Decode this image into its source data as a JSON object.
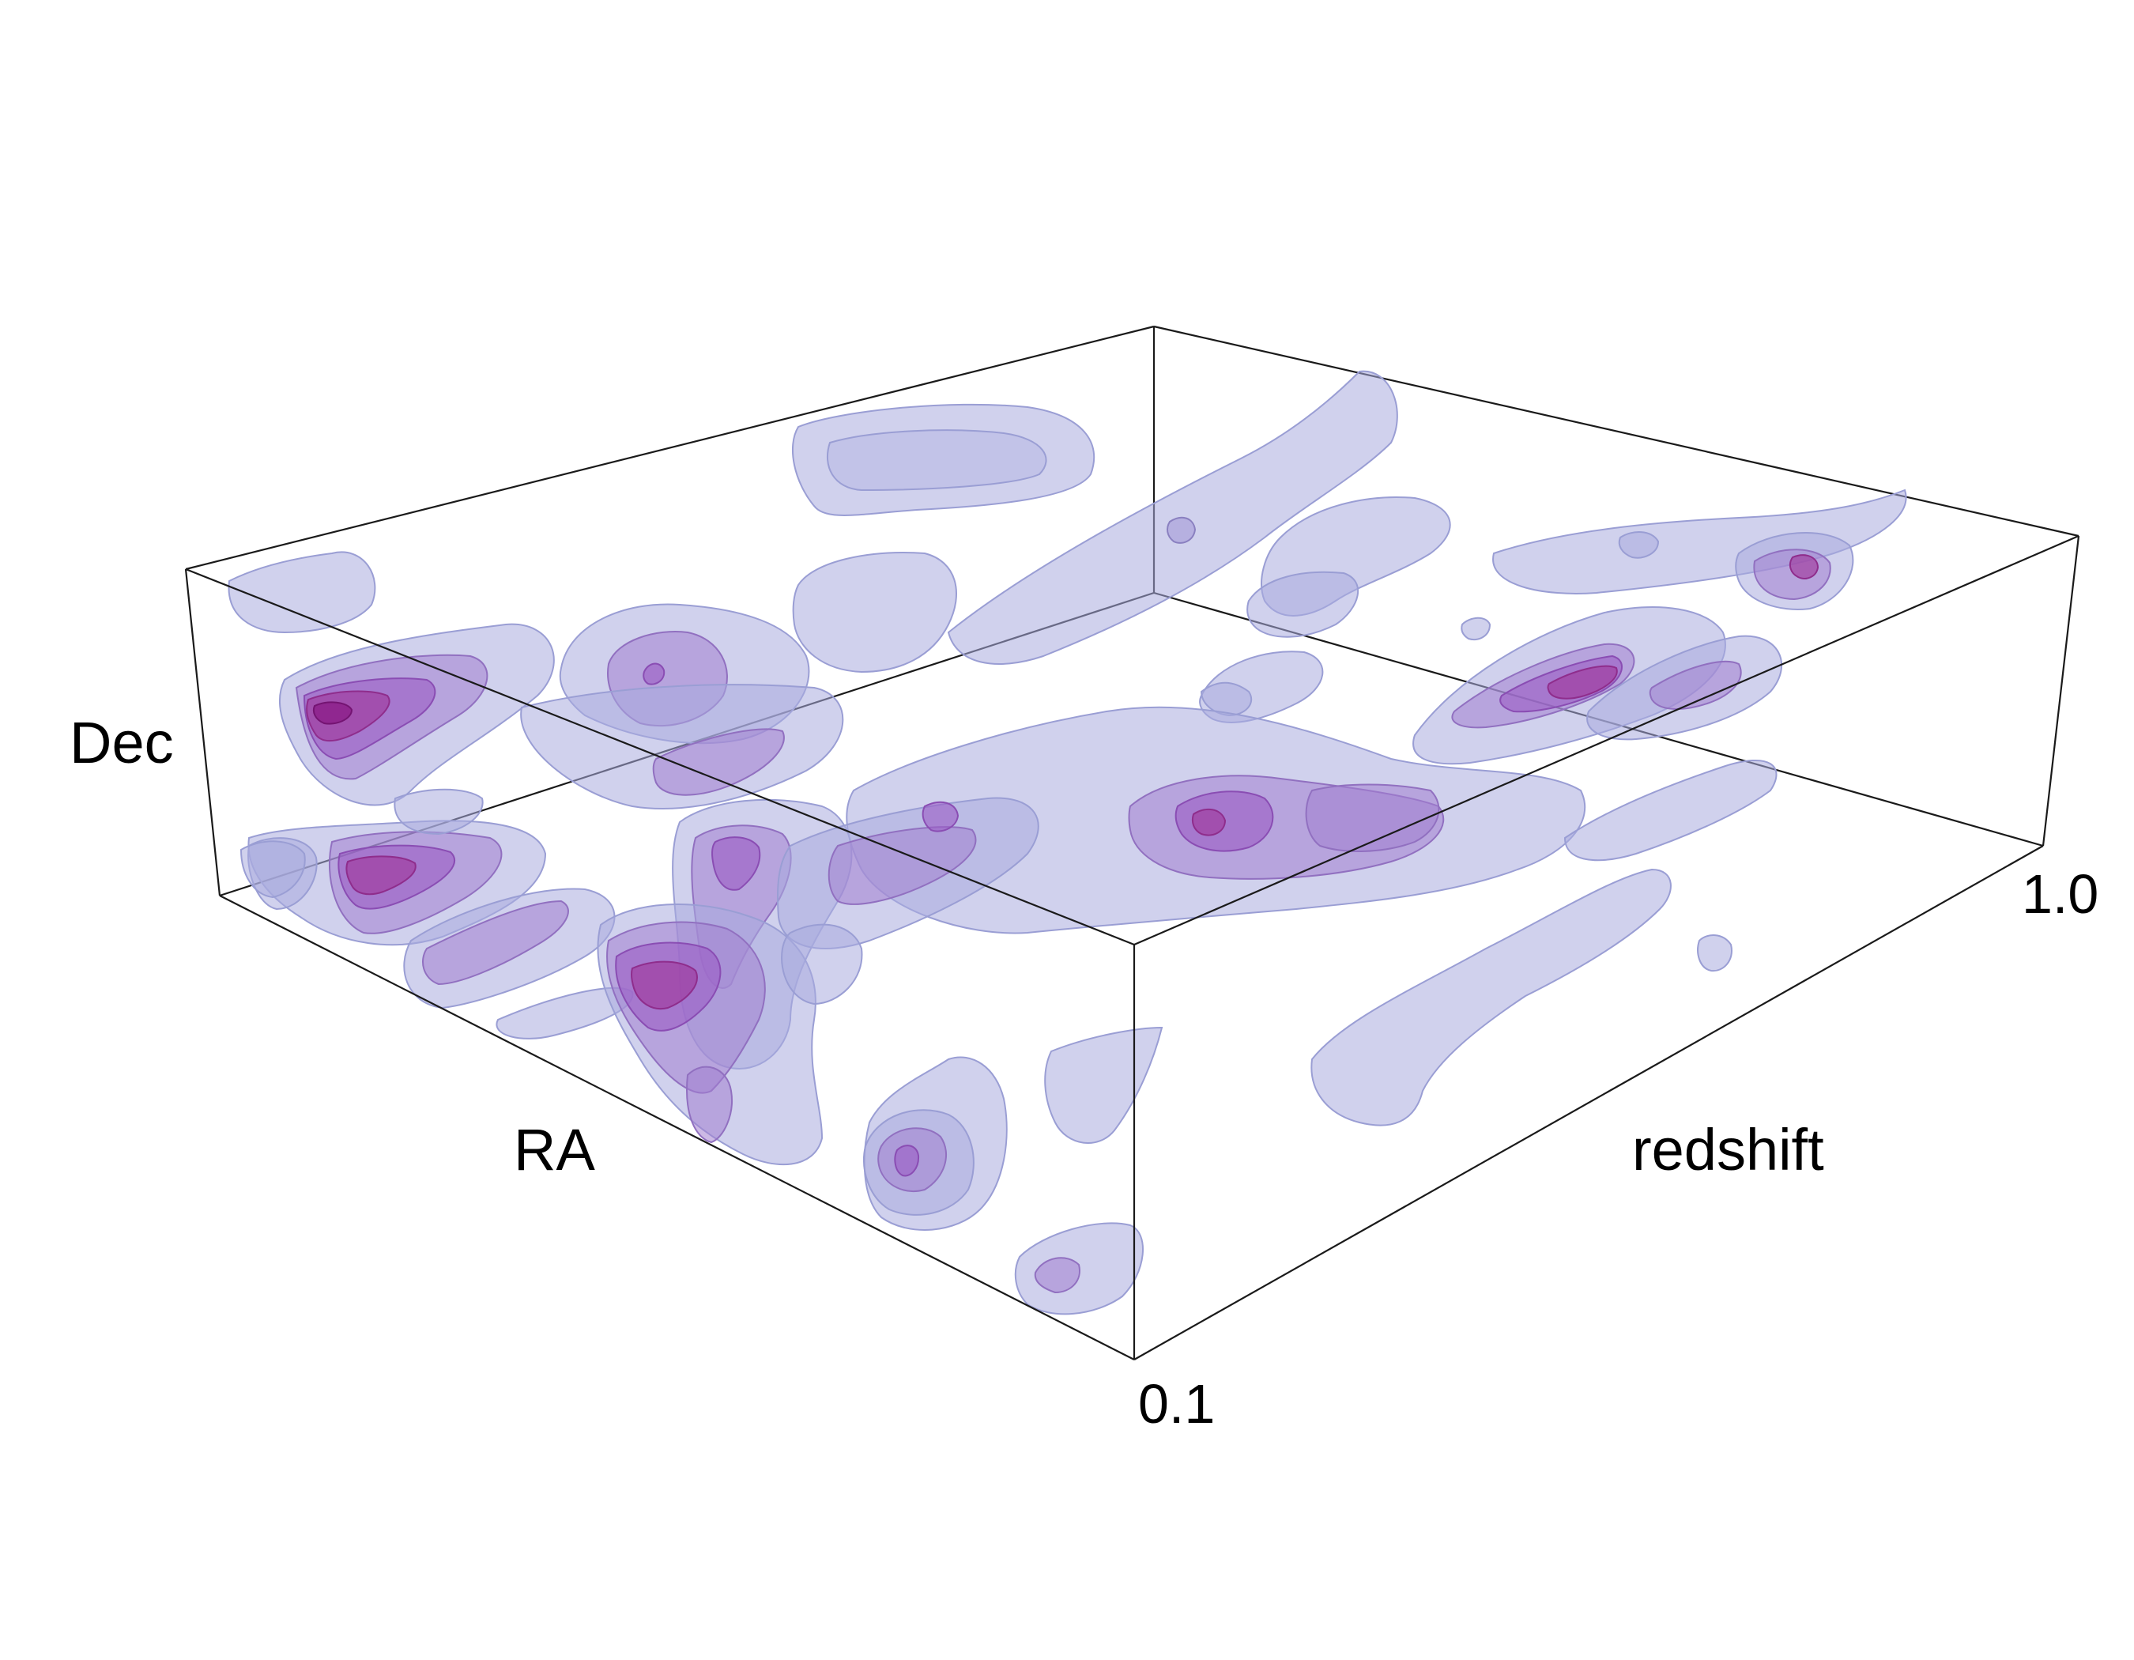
{
  "chart_data": {
    "type": "3d-isosurface",
    "title": "",
    "axes": {
      "x": {
        "label": "RA"
      },
      "y": {
        "label": "Dec"
      },
      "z": {
        "label": "redshift",
        "range": [
          0.1,
          1.0
        ],
        "ticks": [
          "0.1",
          "1.0"
        ]
      }
    },
    "box": "wireframe",
    "grid": false,
    "legend": "none",
    "iso_levels": [
      {
        "level": 1,
        "fill": "#a9acdf",
        "opacity": 0.55
      },
      {
        "level": 2,
        "fill": "#a37fcf",
        "opacity": 0.55
      },
      {
        "level": 3,
        "fill": "#9b5bc4",
        "opacity": 0.6
      },
      {
        "level": 4,
        "fill": "#a0399d",
        "opacity": 0.65
      },
      {
        "level": 5,
        "fill": "#8a1a86",
        "opacity": 0.75
      }
    ],
    "colors": {
      "box": "#1a1a1a",
      "background": "#ffffff"
    }
  }
}
